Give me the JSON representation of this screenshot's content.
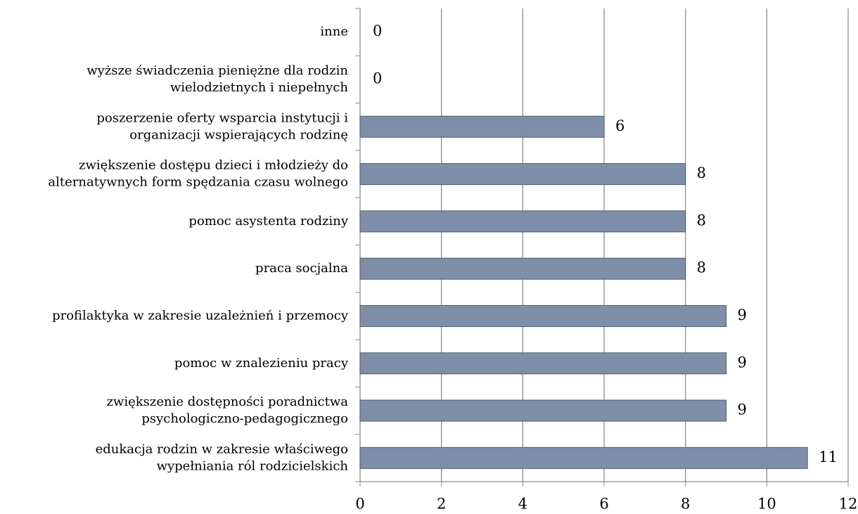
{
  "chart_data": {
    "type": "barh",
    "categories": [
      "inne",
      "wyższe świadczenia pieniężne dla rodzin\nwielodzietnych i niepełnych",
      "poszerzenie oferty wsparcia instytucji i\norganizacji wspierających rodzinę",
      "zwiększenie dostępu dzieci i młodzieży do\nalternatywnych form spędzania czasu wolnego",
      "pomoc asystenta rodziny",
      "praca socjalna",
      "profilaktyka w zakresie uzależnień i przemocy",
      "pomoc w znalezieniu pracy",
      "zwiększenie dostępności poradnictwa\npsychologiczno-pedagogicznego",
      "edukacja rodzin w zakresie właściwego\nwypełniania ról rodzicielskich"
    ],
    "values": [
      0,
      0,
      6,
      8,
      8,
      8,
      9,
      9,
      9,
      11
    ],
    "color": "#7f8fa9",
    "xlim": [
      0,
      12
    ],
    "xticks": [
      0,
      2,
      4,
      6,
      8,
      10,
      12
    ],
    "grid": true
  }
}
